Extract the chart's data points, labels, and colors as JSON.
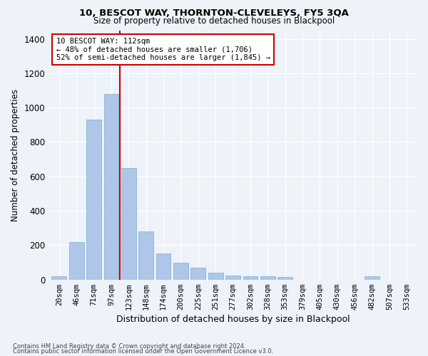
{
  "title": "10, BESCOT WAY, THORNTON-CLEVELEYS, FY5 3QA",
  "subtitle": "Size of property relative to detached houses in Blackpool",
  "xlabel": "Distribution of detached houses by size in Blackpool",
  "ylabel": "Number of detached properties",
  "categories": [
    "20sqm",
    "46sqm",
    "71sqm",
    "97sqm",
    "123sqm",
    "148sqm",
    "174sqm",
    "200sqm",
    "225sqm",
    "251sqm",
    "277sqm",
    "302sqm",
    "328sqm",
    "353sqm",
    "379sqm",
    "405sqm",
    "430sqm",
    "456sqm",
    "482sqm",
    "507sqm",
    "533sqm"
  ],
  "values": [
    20,
    220,
    930,
    1080,
    650,
    280,
    150,
    100,
    70,
    40,
    25,
    20,
    20,
    15,
    0,
    0,
    0,
    0,
    20,
    0,
    0
  ],
  "bar_color": "#aec6e8",
  "bar_edge_color": "#7aafd4",
  "vline_color": "#cc0000",
  "annotation_text": "10 BESCOT WAY: 112sqm\n← 48% of detached houses are smaller (1,706)\n52% of semi-detached houses are larger (1,845) →",
  "annotation_box_color": "#ffffff",
  "annotation_box_edge": "#cc0000",
  "ylim": [
    0,
    1450
  ],
  "yticks": [
    0,
    200,
    400,
    600,
    800,
    1000,
    1200,
    1400
  ],
  "footer_line1": "Contains HM Land Registry data © Crown copyright and database right 2024.",
  "footer_line2": "Contains public sector information licensed under the Open Government Licence v3.0.",
  "bg_color": "#eef2f9",
  "plot_bg_color": "#eef2f9"
}
